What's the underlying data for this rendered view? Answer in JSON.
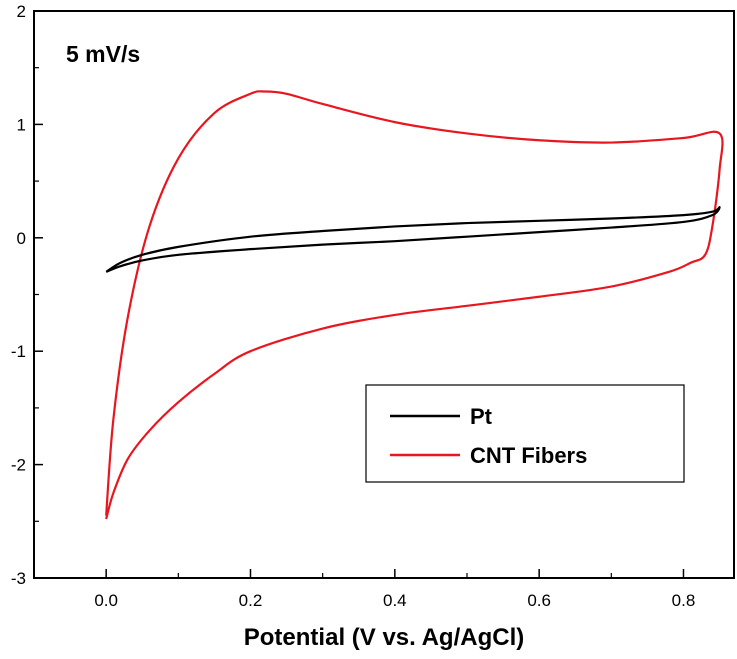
{
  "chart_data": {
    "type": "line",
    "title": "",
    "xlabel": "Potential (V vs. Ag/AgCl)",
    "ylabel": "",
    "annotation": "5 mV/s",
    "xlim": [
      -0.1,
      0.87
    ],
    "ylim": [
      -3,
      2
    ],
    "xticks": [
      0.0,
      0.2,
      0.4,
      0.6,
      0.8
    ],
    "xtick_labels": [
      "0.0",
      "0.2",
      "0.4",
      "0.6",
      "0.8"
    ],
    "yticks": [
      -3,
      -2,
      -1,
      0,
      1,
      2
    ],
    "ytick_labels": [
      "-3",
      "-2",
      "-1",
      "0",
      "1",
      "2"
    ],
    "grid": false,
    "legend_position": "bottom-right",
    "series": [
      {
        "name": "Pt",
        "color": "#000000",
        "x": [
          0.0,
          0.02,
          0.05,
          0.1,
          0.2,
          0.3,
          0.4,
          0.5,
          0.6,
          0.7,
          0.8,
          0.84,
          0.85,
          0.84,
          0.8,
          0.7,
          0.6,
          0.5,
          0.4,
          0.3,
          0.2,
          0.1,
          0.05,
          0.02,
          0.0
        ],
        "y": [
          -0.3,
          -0.22,
          -0.15,
          -0.08,
          0.01,
          0.06,
          0.1,
          0.13,
          0.15,
          0.17,
          0.2,
          0.23,
          0.27,
          0.2,
          0.14,
          0.09,
          0.05,
          0.01,
          -0.03,
          -0.06,
          -0.1,
          -0.15,
          -0.2,
          -0.25,
          -0.3
        ]
      },
      {
        "name": "CNT Fibers",
        "color": "#e8171f",
        "x": [
          0.0,
          0.01,
          0.03,
          0.06,
          0.1,
          0.15,
          0.2,
          0.22,
          0.25,
          0.3,
          0.4,
          0.5,
          0.6,
          0.7,
          0.8,
          0.85,
          0.85,
          0.84,
          0.83,
          0.81,
          0.78,
          0.7,
          0.6,
          0.5,
          0.4,
          0.3,
          0.2,
          0.15,
          0.1,
          0.06,
          0.03,
          0.01,
          0.0
        ],
        "y": [
          -2.45,
          -1.6,
          -0.7,
          0.1,
          0.7,
          1.1,
          1.27,
          1.29,
          1.27,
          1.18,
          1.02,
          0.92,
          0.86,
          0.84,
          0.88,
          0.92,
          0.6,
          0.1,
          -0.15,
          -0.22,
          -0.3,
          -0.43,
          -0.52,
          -0.6,
          -0.68,
          -0.8,
          -1.0,
          -1.2,
          -1.45,
          -1.7,
          -1.95,
          -2.25,
          -2.48
        ]
      }
    ]
  }
}
